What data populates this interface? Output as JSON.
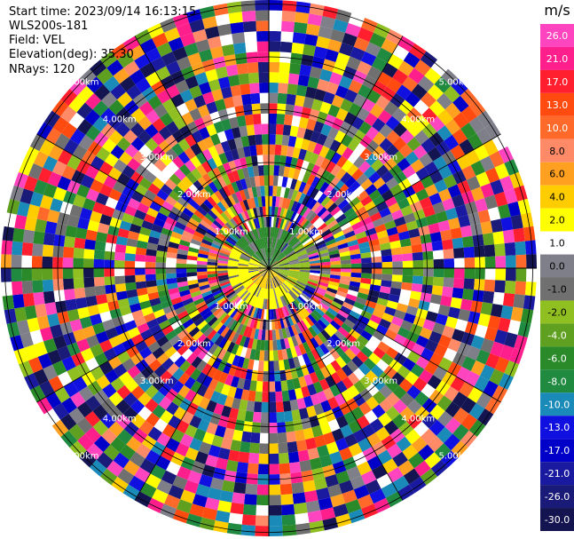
{
  "info": {
    "start_time": "Start time: 2023/09/14 16:13:15",
    "instrument": "WLS200s-181",
    "field": "Field: VEL",
    "elevation": "Elevation(deg): 35.30",
    "nrays": "NRays: 120"
  },
  "chart_data": {
    "type": "heatmap",
    "subtype": "ppi-radar",
    "rays": 120,
    "range_ring_labels": [
      "1.00km",
      "2.00km",
      "3.00km",
      "4.00km",
      "5.00km"
    ],
    "colorbar": {
      "unit": "m/s",
      "levels": [
        26.0,
        21.0,
        17.0,
        13.0,
        10.0,
        8.0,
        6.0,
        4.0,
        2.0,
        1.0,
        0.0,
        -1.0,
        -2.0,
        -4.0,
        -6.0,
        -8.0,
        -10.0,
        -13.0,
        -17.0,
        -21.0,
        -26.0,
        -30.0
      ],
      "level_labels": [
        "26.0",
        "21.0",
        "17.0",
        "13.0",
        "10.0",
        "8.0",
        "6.0",
        "4.0",
        "2.0",
        "1.0",
        "0.0",
        "-1.0",
        "-2.0",
        "-4.0",
        "-6.0",
        "-8.0",
        "-10.0",
        "-13.0",
        "-17.0",
        "-21.0",
        "-26.0",
        "-30.0"
      ],
      "colors": [
        "#ff44c0",
        "#ff1f8c",
        "#ff1f2e",
        "#ff4a10",
        "#ff6a2a",
        "#ff8a68",
        "#ffa020",
        "#ffcc00",
        "#ffff00",
        "#ffffff",
        "#7f7f8a",
        "#707070",
        "#8fbf20",
        "#60a020",
        "#2a8a2a",
        "#208a40",
        "#1a8ab8",
        "#1010e0",
        "#0000c8",
        "#1a1aa0",
        "#1a1a78",
        "#141450"
      ]
    }
  }
}
